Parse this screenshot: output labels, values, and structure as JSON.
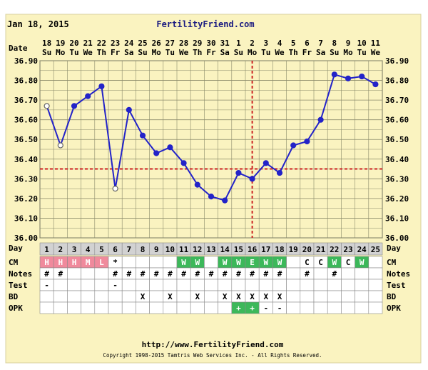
{
  "header": {
    "date": "Jan 18, 2015",
    "site": "FertilityFriend.com"
  },
  "footer": {
    "url": "http://www.FertilityFriend.com",
    "copyright": "Copyright 1998-2015 Tamtris Web Services Inc. - All Rights Reserved."
  },
  "labels": {
    "date": "Date",
    "day": "Day",
    "cm": "CM",
    "notes": "Notes",
    "test": "Test",
    "bd": "BD",
    "opk": "OPK"
  },
  "colors": {
    "background": "#faf3c0",
    "line": "#2323c8",
    "grid": "#8a8a6a",
    "coverline": "#cc2222",
    "cm_pink": "#f08a9c",
    "cm_green": "#3cb85a",
    "opk_green": "#3cb85a",
    "day_cell": "#d2d2d2"
  },
  "chart_data": {
    "type": "line",
    "y_ticks": [
      "36.00",
      "36.10",
      "36.20",
      "36.30",
      "36.40",
      "36.50",
      "36.60",
      "36.70",
      "36.80",
      "36.90"
    ],
    "ylim": [
      36.0,
      36.9
    ],
    "dates": [
      "18",
      "19",
      "20",
      "21",
      "22",
      "23",
      "24",
      "25",
      "26",
      "27",
      "28",
      "29",
      "30",
      "31",
      "1",
      "2",
      "3",
      "4",
      "5",
      "6",
      "7",
      "8",
      "9",
      "10",
      "11"
    ],
    "weekdays": [
      "Su",
      "Mo",
      "Tu",
      "We",
      "Th",
      "Fr",
      "Sa",
      "Su",
      "Mo",
      "Tu",
      "We",
      "Th",
      "Fr",
      "Sa",
      "Su",
      "Mo",
      "Tu",
      "We",
      "Th",
      "Fr",
      "Sa",
      "Su",
      "Mo",
      "Tu",
      "We"
    ],
    "days": [
      "1",
      "2",
      "3",
      "4",
      "5",
      "6",
      "7",
      "8",
      "9",
      "10",
      "11",
      "12",
      "13",
      "14",
      "15",
      "16",
      "17",
      "18",
      "19",
      "20",
      "21",
      "22",
      "23",
      "24",
      "25"
    ],
    "temps": [
      36.67,
      36.47,
      36.67,
      36.72,
      36.77,
      36.25,
      36.65,
      36.52,
      36.43,
      36.46,
      36.38,
      36.27,
      36.21,
      36.19,
      36.33,
      36.3,
      36.38,
      36.33,
      36.47,
      36.49,
      36.6,
      36.83,
      36.81,
      36.82,
      36.78
    ],
    "open_points": [
      1,
      2,
      6
    ],
    "coverline": 36.35,
    "ovulation_day": 16,
    "grid": true,
    "cm": [
      "H",
      "H",
      "H",
      "M",
      "L",
      "*",
      "",
      "",
      "",
      "",
      "W",
      "W",
      "",
      "W",
      "W",
      "E",
      "W",
      "W",
      "",
      "C",
      "C",
      "W",
      "C",
      "W",
      ""
    ],
    "notes": [
      "#",
      "#",
      "",
      "",
      "",
      "#",
      "#",
      "#",
      "#",
      "#",
      "#",
      "#",
      "#",
      "#",
      "#",
      "#",
      "#",
      "#",
      "",
      "#",
      "",
      "#",
      "",
      "",
      ""
    ],
    "test": [
      "-",
      "",
      "",
      "",
      "",
      "-",
      "",
      "",
      "",
      "",
      "",
      "",
      "",
      "",
      "",
      "",
      "",
      "",
      "",
      "",
      "",
      "",
      "",
      "",
      ""
    ],
    "bd": [
      "",
      "",
      "",
      "",
      "",
      "",
      "",
      "X",
      "",
      "X",
      "",
      "X",
      "",
      "X",
      "X",
      "X",
      "X",
      "X",
      "",
      "",
      "",
      "",
      "",
      "",
      ""
    ],
    "opk": [
      "",
      "",
      "",
      "",
      "",
      "",
      "",
      "",
      "",
      "",
      "",
      "",
      "",
      "",
      "+",
      "+",
      "-",
      "-",
      "",
      "",
      "",
      "",
      "",
      "",
      ""
    ]
  }
}
